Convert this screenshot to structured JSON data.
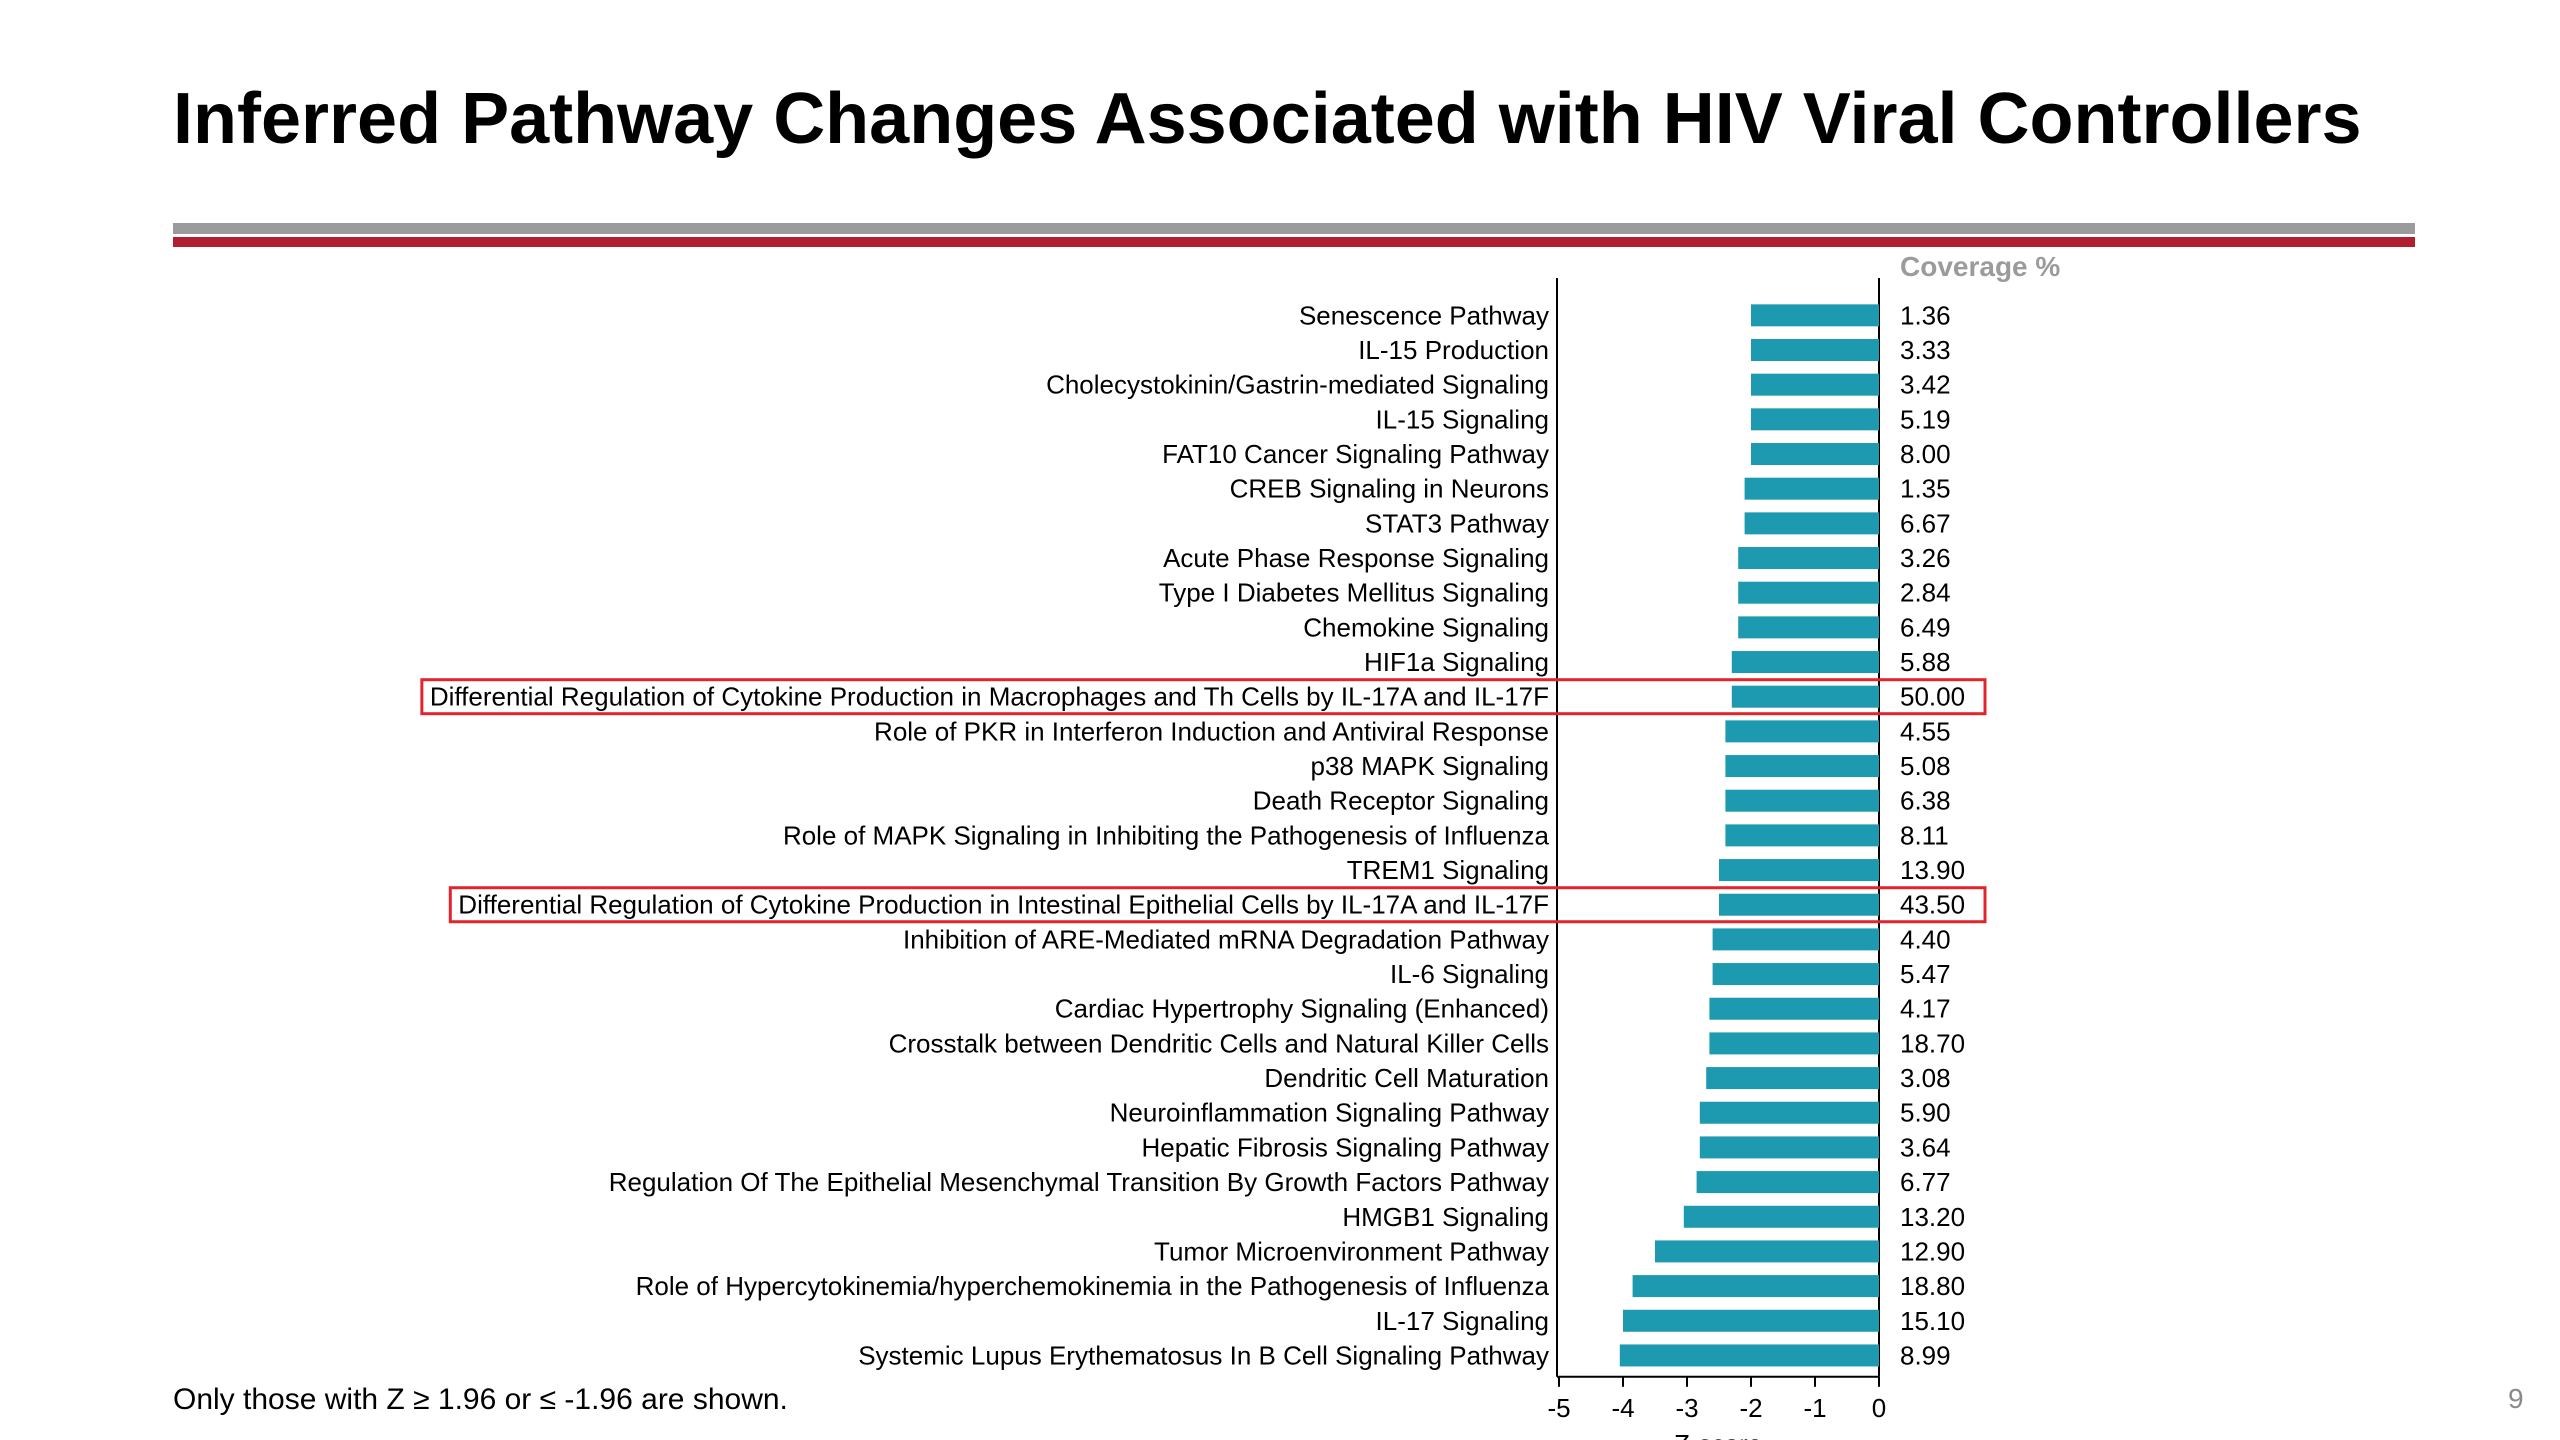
{
  "title": "Inferred Pathway Changes Associated with HIV Viral Controllers",
  "footnote": "Only those with Z ≥ 1.96 or ≤ -1.96 are shown.",
  "page_number": "9",
  "colors": {
    "bar": "#1e9ab0",
    "highlight": "#e0262c",
    "rule_gray": "#9b9b9b",
    "rule_red": "#b01e2f"
  },
  "chart_data": {
    "type": "bar",
    "orientation": "horizontal",
    "xlabel": "Z-score",
    "xlim": [
      -5,
      0
    ],
    "xticks": [
      "-5",
      "-4",
      "-3",
      "-2",
      "-1",
      "0"
    ],
    "coverage_header": "Coverage %",
    "categories": [
      "Senescence Pathway",
      "IL-15 Production",
      "Cholecystokinin/Gastrin-mediated Signaling",
      "IL-15 Signaling",
      "FAT10 Cancer Signaling Pathway",
      "CREB Signaling in Neurons",
      "STAT3 Pathway",
      "Acute Phase Response Signaling",
      "Type I Diabetes Mellitus Signaling",
      "Chemokine Signaling",
      "HIF1a Signaling",
      "Differential Regulation of Cytokine Production in Macrophages and Th Cells by IL-17A and IL-17F",
      "Role of PKR in Interferon Induction and Antiviral Response",
      "p38 MAPK Signaling",
      "Death Receptor Signaling",
      "Role of MAPK Signaling in Inhibiting the Pathogenesis of Influenza",
      "TREM1 Signaling",
      "Differential Regulation of Cytokine Production in Intestinal Epithelial Cells by IL-17A and IL-17F",
      "Inhibition of ARE-Mediated mRNA Degradation Pathway",
      "IL-6 Signaling",
      "Cardiac Hypertrophy Signaling (Enhanced)",
      "Crosstalk between Dendritic Cells and Natural Killer Cells",
      "Dendritic Cell Maturation",
      "Neuroinflammation Signaling Pathway",
      "Hepatic Fibrosis Signaling Pathway",
      "Regulation Of The Epithelial Mesenchymal Transition By Growth Factors Pathway",
      "HMGB1 Signaling",
      "Tumor Microenvironment Pathway",
      "Role of Hypercytokinemia/hyperchemokinemia in the Pathogenesis of Influenza",
      "IL-17 Signaling",
      "Systemic Lupus Erythematosus In B Cell Signaling Pathway"
    ],
    "values": [
      -2.0,
      -2.0,
      -2.0,
      -2.0,
      -2.0,
      -2.1,
      -2.1,
      -2.2,
      -2.2,
      -2.2,
      -2.3,
      -2.3,
      -2.4,
      -2.4,
      -2.4,
      -2.4,
      -2.5,
      -2.5,
      -2.6,
      -2.6,
      -2.65,
      -2.65,
      -2.7,
      -2.8,
      -2.8,
      -2.85,
      -3.05,
      -3.5,
      -3.85,
      -4.0,
      -4.05
    ],
    "coverage": [
      "1.36",
      "3.33",
      "3.42",
      "5.19",
      "8.00",
      "1.35",
      "6.67",
      "3.26",
      "2.84",
      "6.49",
      "5.88",
      "50.00",
      "4.55",
      "5.08",
      "6.38",
      "8.11",
      "13.90",
      "43.50",
      "4.40",
      "5.47",
      "4.17",
      "18.70",
      "3.08",
      "5.90",
      "3.64",
      "6.77",
      "13.20",
      "12.90",
      "18.80",
      "15.10",
      "8.99"
    ],
    "highlighted": [
      11,
      17
    ]
  }
}
